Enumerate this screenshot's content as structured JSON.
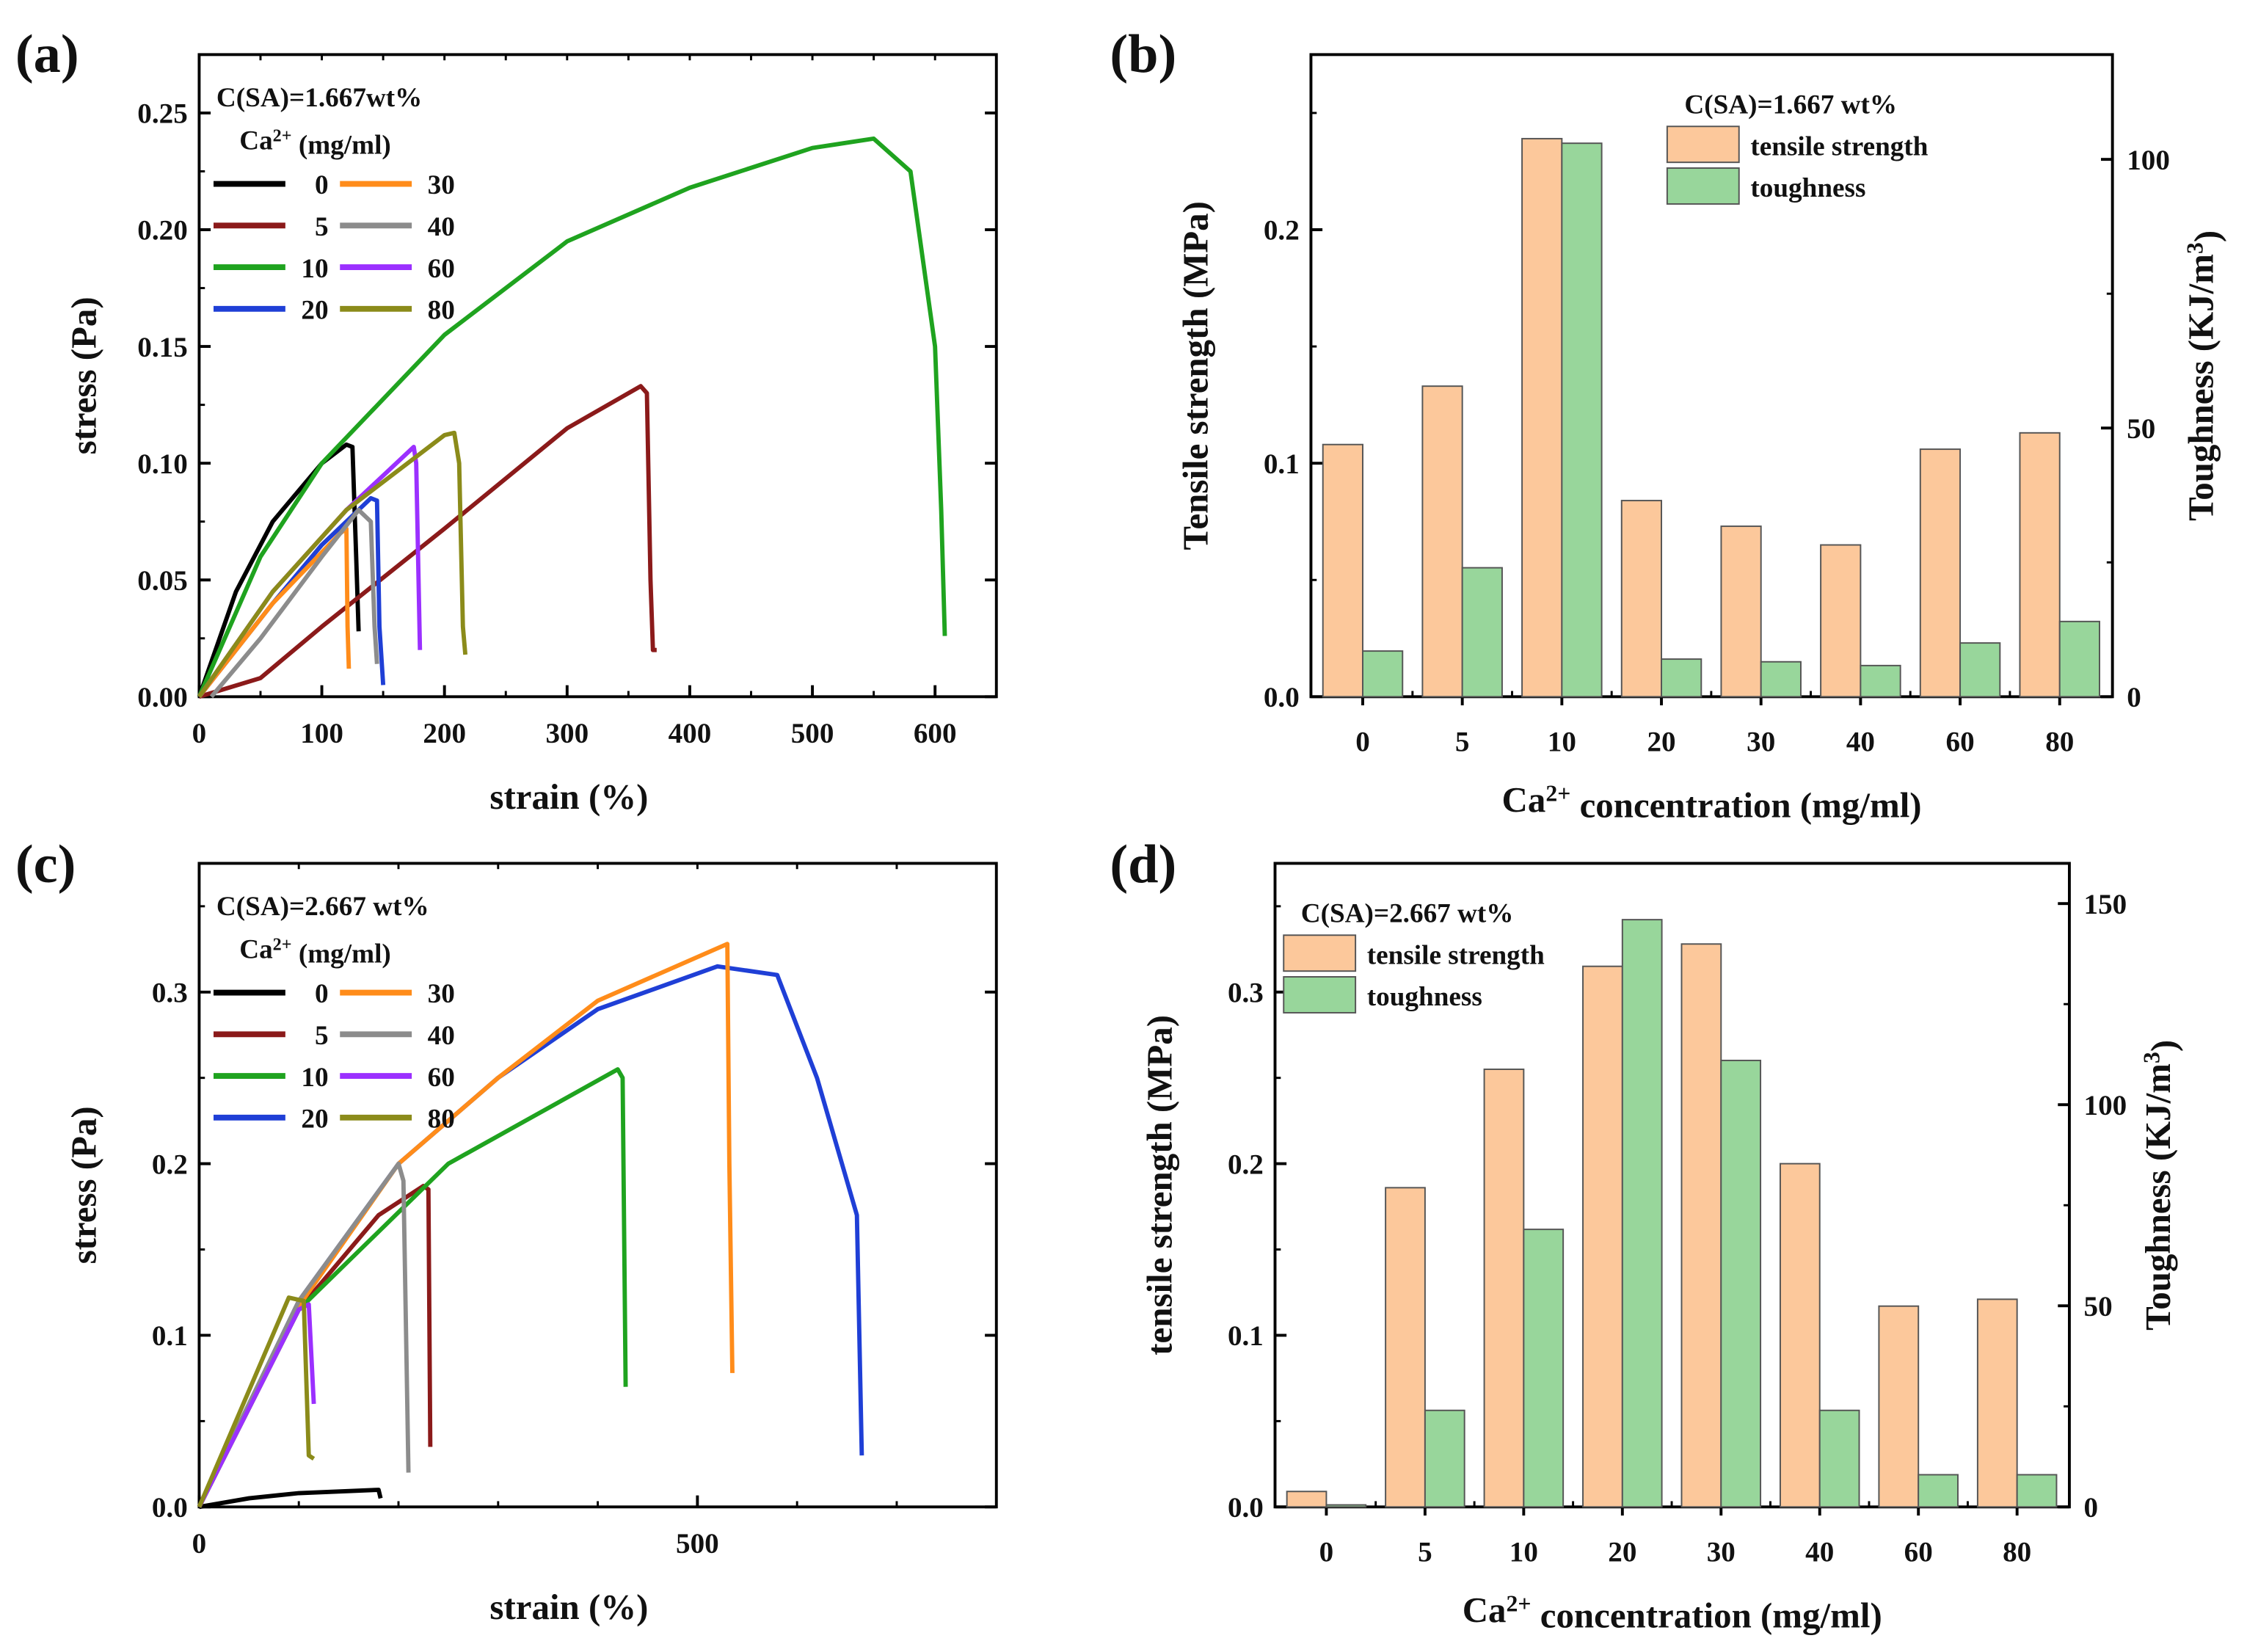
{
  "chart_data": [
    {
      "id": "a",
      "panel_label": "(a)",
      "type": "line",
      "xlabel": "strain (%)",
      "ylabel": "stress (Pa)",
      "xlim": [
        0,
        650
      ],
      "ylim": [
        0,
        0.275
      ],
      "xticks": [
        0,
        100,
        200,
        300,
        400,
        500,
        600
      ],
      "xtick_labels": [
        "0",
        "100",
        "200",
        "300",
        "400",
        "500",
        "600"
      ],
      "xminor": 50,
      "yticks": [
        0,
        0.05,
        0.1,
        0.15,
        0.2,
        0.25
      ],
      "ytick_labels": [
        "0.00",
        "0.05",
        "0.10",
        "0.15",
        "0.20",
        "0.25"
      ],
      "yminor": 0.025,
      "legend_title": "C(SA)=1.667wt%",
      "legend_subtitle": {
        "base": "Ca",
        "sup": "2+",
        "rest": " (mg/ml)"
      },
      "legend": "top-left",
      "series": [
        {
          "name": "0",
          "color": "#000000",
          "points": [
            [
              0,
              0
            ],
            [
              30,
              0.045
            ],
            [
              60,
              0.075
            ],
            [
              100,
              0.1
            ],
            [
              120,
              0.108
            ],
            [
              125,
              0.107
            ],
            [
              128,
              0.06
            ],
            [
              130,
              0.028
            ]
          ]
        },
        {
          "name": "5",
          "color": "#8b1a1a",
          "points": [
            [
              0,
              0
            ],
            [
              50,
              0.008
            ],
            [
              100,
              0.03
            ],
            [
              200,
              0.072
            ],
            [
              300,
              0.115
            ],
            [
              360,
              0.133
            ],
            [
              365,
              0.13
            ],
            [
              368,
              0.05
            ],
            [
              370,
              0.02
            ],
            [
              373,
              0.02
            ]
          ]
        },
        {
          "name": "10",
          "color": "#1fa31f",
          "points": [
            [
              0,
              0
            ],
            [
              50,
              0.06
            ],
            [
              100,
              0.1
            ],
            [
              200,
              0.155
            ],
            [
              300,
              0.195
            ],
            [
              400,
              0.218
            ],
            [
              500,
              0.235
            ],
            [
              550,
              0.239
            ],
            [
              580,
              0.225
            ],
            [
              600,
              0.15
            ],
            [
              605,
              0.08
            ],
            [
              608,
              0.026
            ]
          ]
        },
        {
          "name": "20",
          "color": "#1f3fd6",
          "points": [
            [
              0,
              0
            ],
            [
              60,
              0.04
            ],
            [
              100,
              0.065
            ],
            [
              140,
              0.085
            ],
            [
              145,
              0.084
            ],
            [
              147,
              0.03
            ],
            [
              150,
              0.005
            ]
          ]
        },
        {
          "name": "30",
          "color": "#ff8c1a",
          "points": [
            [
              0,
              0
            ],
            [
              60,
              0.04
            ],
            [
              115,
              0.07
            ],
            [
              120,
              0.072
            ],
            [
              121,
              0.03
            ],
            [
              122,
              0.012
            ]
          ]
        },
        {
          "name": "40",
          "color": "#8c8c8c",
          "points": [
            [
              10,
              0
            ],
            [
              50,
              0.025
            ],
            [
              100,
              0.06
            ],
            [
              130,
              0.08
            ],
            [
              140,
              0.075
            ],
            [
              143,
              0.03
            ],
            [
              145,
              0.014
            ]
          ]
        },
        {
          "name": "60",
          "color": "#9b30ff",
          "points": [
            [
              0,
              0
            ],
            [
              60,
              0.045
            ],
            [
              120,
              0.08
            ],
            [
              175,
              0.107
            ],
            [
              177,
              0.1
            ],
            [
              180,
              0.02
            ]
          ]
        },
        {
          "name": "80",
          "color": "#8b8b1a",
          "points": [
            [
              0,
              0
            ],
            [
              60,
              0.045
            ],
            [
              120,
              0.08
            ],
            [
              200,
              0.112
            ],
            [
              208,
              0.113
            ],
            [
              212,
              0.1
            ],
            [
              215,
              0.03
            ],
            [
              217,
              0.018
            ]
          ]
        }
      ]
    },
    {
      "id": "b",
      "panel_label": "(b)",
      "type": "bar",
      "xlabel": {
        "base": "Ca",
        "sup": "2+",
        "rest": " concentration (mg/ml)"
      },
      "ylabel": "Tensile strength (MPa)",
      "y2label": {
        "base": "Toughness (KJ/m",
        "sup": "3",
        "rest": ")"
      },
      "categories": [
        "0",
        "5",
        "10",
        "20",
        "30",
        "40",
        "60",
        "80"
      ],
      "ylim": [
        0,
        0.275
      ],
      "yticks": [
        0,
        0.1,
        0.2
      ],
      "ytick_labels": [
        "0.0",
        "0.1",
        "0.2"
      ],
      "yminor": 0.05,
      "y2lim": [
        0,
        119.5
      ],
      "y2ticks": [
        0,
        50,
        100
      ],
      "y2tick_labels": [
        "0",
        "50",
        "100"
      ],
      "y2minor": 25,
      "legend_title": "C(SA)=1.667 wt%",
      "legend": "top-right",
      "series": [
        {
          "name": "tensile strength",
          "axis": "left",
          "color": "#fcc89b",
          "values": [
            0.108,
            0.133,
            0.239,
            0.084,
            0.073,
            0.065,
            0.106,
            0.113
          ]
        },
        {
          "name": "toughness",
          "axis": "right",
          "color": "#98d69b",
          "values": [
            8.5,
            24,
            103,
            7,
            6.5,
            5.8,
            10,
            14
          ]
        }
      ]
    },
    {
      "id": "c",
      "panel_label": "(c)",
      "type": "line",
      "xlabel": "strain (%)",
      "ylabel": "stress (Pa)",
      "xlim": [
        0,
        800
      ],
      "ylim": [
        0,
        0.375
      ],
      "xticks": [
        0,
        500
      ],
      "xtick_labels": [
        "0",
        "500"
      ],
      "xminor": 100,
      "yticks": [
        0,
        0.1,
        0.2,
        0.3
      ],
      "ytick_labels": [
        "0.0",
        "0.1",
        "0.2",
        "0.3"
      ],
      "yminor": 0.05,
      "legend_title": "C(SA)=2.667 wt%",
      "legend_subtitle": {
        "base": "Ca",
        "sup": "2+",
        "rest": " (mg/ml)"
      },
      "legend": "top-left",
      "series": [
        {
          "name": "0",
          "color": "#000000",
          "points": [
            [
              0,
              0
            ],
            [
              50,
              0.005
            ],
            [
              100,
              0.008
            ],
            [
              180,
              0.01
            ],
            [
              182,
              0.005
            ]
          ]
        },
        {
          "name": "5",
          "color": "#8b1a1a",
          "points": [
            [
              0,
              0
            ],
            [
              100,
              0.115
            ],
            [
              180,
              0.17
            ],
            [
              225,
              0.187
            ],
            [
              230,
              0.185
            ],
            [
              232,
              0.035
            ]
          ]
        },
        {
          "name": "10",
          "color": "#1fa31f",
          "points": [
            [
              0,
              0
            ],
            [
              100,
              0.115
            ],
            [
              250,
              0.2
            ],
            [
              420,
              0.255
            ],
            [
              425,
              0.25
            ],
            [
              428,
              0.07
            ]
          ]
        },
        {
          "name": "20",
          "color": "#1f3fd6",
          "points": [
            [
              0,
              0
            ],
            [
              100,
              0.12
            ],
            [
              200,
              0.2
            ],
            [
              300,
              0.25
            ],
            [
              400,
              0.29
            ],
            [
              520,
              0.315
            ],
            [
              580,
              0.31
            ],
            [
              620,
              0.25
            ],
            [
              660,
              0.17
            ],
            [
              665,
              0.03
            ]
          ]
        },
        {
          "name": "30",
          "color": "#ff8c1a",
          "points": [
            [
              0,
              0
            ],
            [
              100,
              0.117
            ],
            [
              200,
              0.2
            ],
            [
              300,
              0.25
            ],
            [
              400,
              0.295
            ],
            [
              530,
              0.328
            ],
            [
              532,
              0.2
            ],
            [
              535,
              0.078
            ]
          ]
        },
        {
          "name": "40",
          "color": "#8c8c8c",
          "points": [
            [
              0,
              0
            ],
            [
              100,
              0.12
            ],
            [
              200,
              0.2
            ],
            [
              205,
              0.19
            ],
            [
              210,
              0.02
            ]
          ]
        },
        {
          "name": "60",
          "color": "#9b30ff",
          "points": [
            [
              0,
              0
            ],
            [
              100,
              0.115
            ],
            [
              110,
              0.118
            ],
            [
              115,
              0.06
            ]
          ]
        },
        {
          "name": "80",
          "color": "#8b8b1a",
          "points": [
            [
              0,
              0
            ],
            [
              90,
              0.122
            ],
            [
              105,
              0.12
            ],
            [
              110,
              0.03
            ],
            [
              115,
              0.028
            ]
          ]
        }
      ]
    },
    {
      "id": "d",
      "panel_label": "(d)",
      "type": "bar",
      "xlabel": {
        "base": "Ca",
        "sup": "2+",
        "rest": " concentration (mg/ml)"
      },
      "ylabel": "tensile strength (MPa)",
      "y2label": {
        "base": "Toughness (KJ/m",
        "sup": "3",
        "rest": ")"
      },
      "categories": [
        "0",
        "5",
        "10",
        "20",
        "30",
        "40",
        "60",
        "80"
      ],
      "ylim": [
        0,
        0.375
      ],
      "yticks": [
        0,
        0.1,
        0.2,
        0.3
      ],
      "ytick_labels": [
        "0.0",
        "0.1",
        "0.2",
        "0.3"
      ],
      "yminor": 0.05,
      "y2lim": [
        0,
        160
      ],
      "y2ticks": [
        0,
        50,
        100,
        150
      ],
      "y2tick_labels": [
        "0",
        "50",
        "100",
        "150"
      ],
      "y2minor": 25,
      "legend_title": "C(SA)=2.667 wt%",
      "legend": "top-left",
      "series": [
        {
          "name": "tensile strength",
          "axis": "left",
          "color": "#fcc89b",
          "values": [
            0.009,
            0.186,
            0.255,
            0.315,
            0.328,
            0.2,
            0.117,
            0.121
          ]
        },
        {
          "name": "toughness",
          "axis": "right",
          "color": "#98d69b",
          "values": [
            0.5,
            24,
            69,
            146,
            111,
            24,
            8,
            8
          ]
        }
      ]
    }
  ]
}
